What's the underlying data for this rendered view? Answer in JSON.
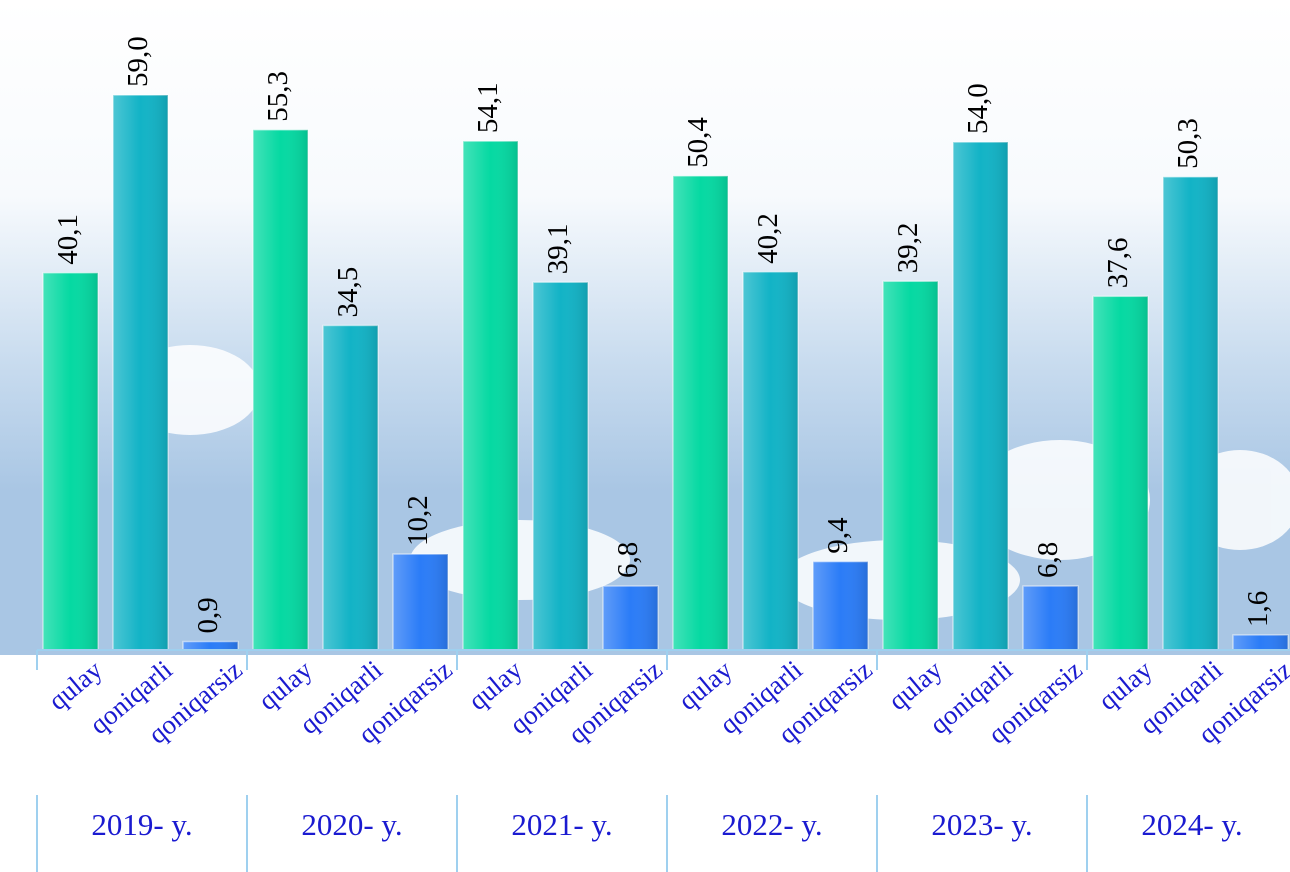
{
  "chart_data": {
    "type": "bar",
    "groups": [
      "2019- y.",
      "2020- y.",
      "2021- y.",
      "2022- y.",
      "2023- y.",
      "2024- y."
    ],
    "series": [
      {
        "name": "qulay",
        "color": "#05d9a2",
        "values": [
          40.1,
          55.3,
          54.1,
          50.4,
          39.2,
          37.6
        ],
        "value_labels": [
          "40,1",
          "55,3",
          "54,1",
          "50,4",
          "39,2",
          "37,6"
        ]
      },
      {
        "name": "qoniqarli",
        "color": "#12b3c6",
        "values": [
          59.0,
          34.5,
          39.1,
          40.2,
          54.0,
          50.3
        ],
        "value_labels": [
          "59,0",
          "34,5",
          "39,1",
          "40,2",
          "54,0",
          "50,3"
        ]
      },
      {
        "name": "qoniqarsiz",
        "color": "#2b7cf7",
        "values": [
          0.9,
          10.2,
          6.8,
          9.4,
          6.8,
          1.6
        ],
        "value_labels": [
          "0,9",
          "10,2",
          "6,8",
          "9,4",
          "6,8",
          "1,6"
        ]
      }
    ]
  }
}
